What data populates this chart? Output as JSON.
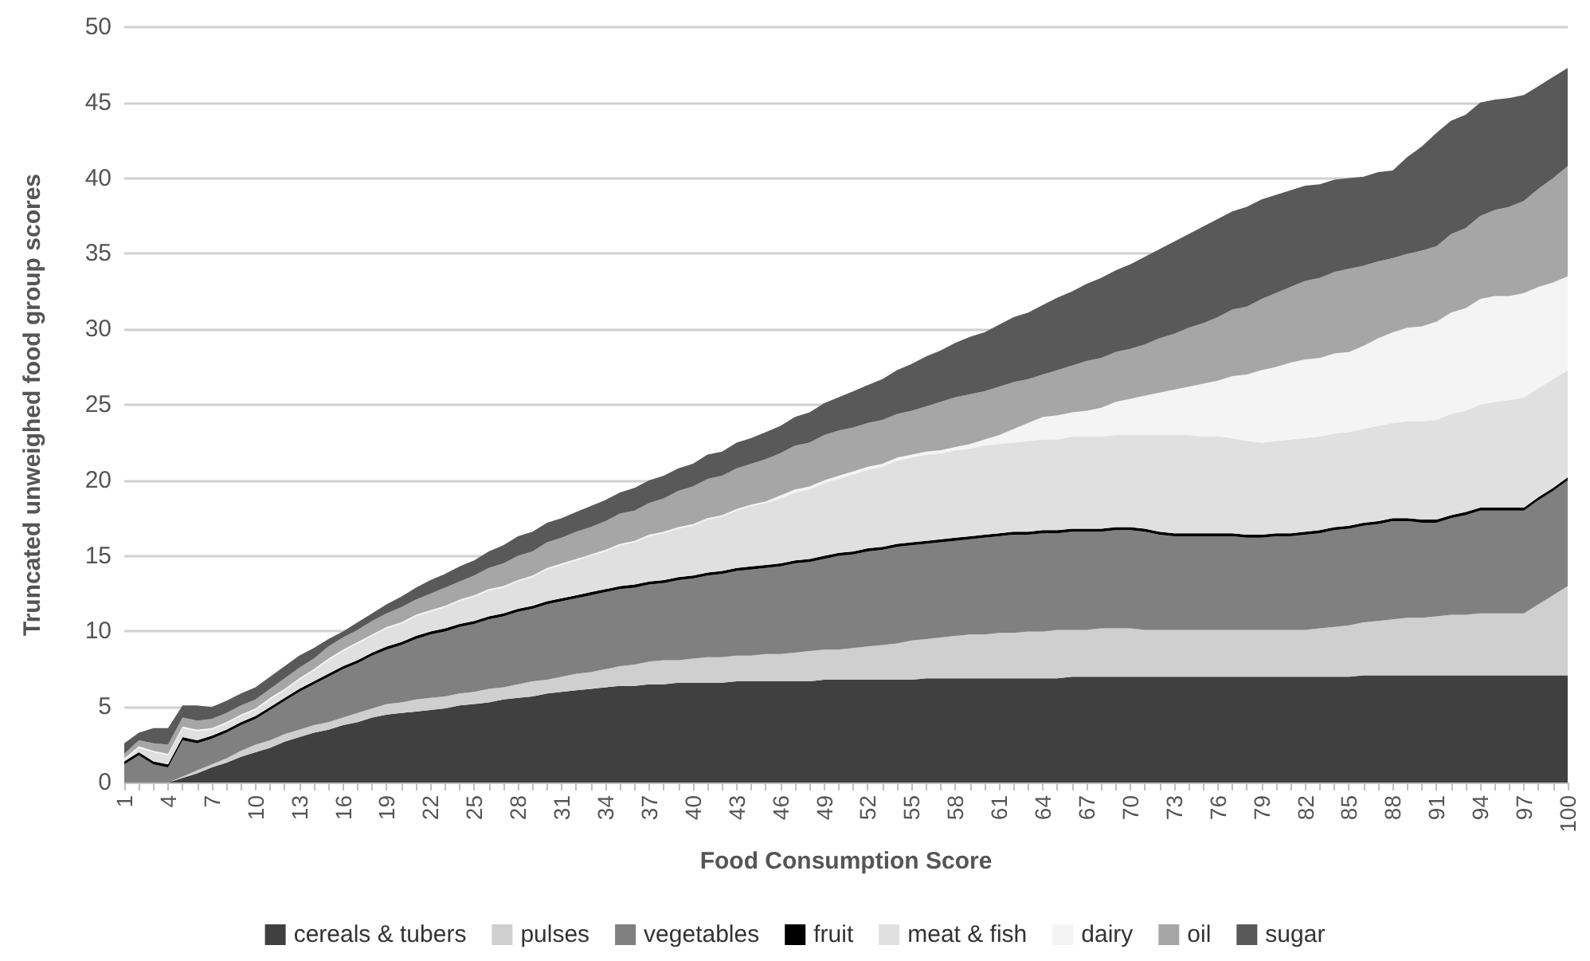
{
  "chart_data": {
    "type": "area",
    "stacked": true,
    "xlabel": "Food Consumption Score",
    "ylabel": "Truncated unweighed food group scores",
    "categories": [
      "1",
      null,
      null,
      "4",
      null,
      null,
      "7",
      null,
      null,
      "10",
      null,
      null,
      "13",
      null,
      null,
      "16",
      null,
      null,
      "19",
      null,
      null,
      "22",
      null,
      null,
      "25",
      null,
      null,
      "28",
      null,
      null,
      "31",
      null,
      null,
      "34",
      null,
      null,
      "37",
      null,
      null,
      "40",
      null,
      null,
      "43",
      null,
      null,
      "46",
      null,
      null,
      "49",
      null,
      null,
      "52",
      null,
      null,
      "55",
      null,
      null,
      "58",
      null,
      null,
      "61",
      null,
      null,
      "64",
      null,
      null,
      "67",
      null,
      null,
      "70",
      null,
      null,
      "73",
      null,
      null,
      "76",
      null,
      null,
      "79",
      null,
      null,
      "82",
      null,
      null,
      "85",
      null,
      null,
      "88",
      null,
      null,
      "91",
      null,
      null,
      "94",
      null,
      null,
      "97",
      null,
      null,
      "100"
    ],
    "series": [
      {
        "name": "cereals & tubers",
        "color": "#404040",
        "values": [
          0,
          0,
          0,
          0,
          0.3,
          0.6,
          1,
          1.3,
          1.7,
          2,
          2.3,
          2.7,
          3,
          3.3,
          3.5,
          3.8,
          4,
          4.3,
          4.5,
          4.6,
          4.7,
          4.8,
          4.9,
          5.1,
          5.2,
          5.3,
          5.5,
          5.6,
          5.7,
          5.9,
          6,
          6.1,
          6.2,
          6.3,
          6.4,
          6.4,
          6.5,
          6.5,
          6.6,
          6.6,
          6.6,
          6.6,
          6.7,
          6.7,
          6.7,
          6.7,
          6.7,
          6.7,
          6.8,
          6.8,
          6.8,
          6.8,
          6.8,
          6.8,
          6.8,
          6.9,
          6.9,
          6.9,
          6.9,
          6.9,
          6.9,
          6.9,
          6.9,
          6.9,
          6.9,
          7,
          7,
          7,
          7,
          7,
          7,
          7,
          7,
          7,
          7,
          7,
          7,
          7,
          7,
          7,
          7,
          7,
          7,
          7,
          7,
          7.1,
          7.1,
          7.1,
          7.1,
          7.1,
          7.1,
          7.1,
          7.1,
          7.1,
          7.1,
          7.1,
          7.1,
          7.1,
          7.1,
          7.1
        ]
      },
      {
        "name": "pulses",
        "color": "#cfcfcf",
        "values": [
          0,
          0,
          0,
          0,
          0.1,
          0.2,
          0.2,
          0.3,
          0.4,
          0.5,
          0.5,
          0.5,
          0.5,
          0.5,
          0.5,
          0.5,
          0.6,
          0.6,
          0.7,
          0.7,
          0.8,
          0.8,
          0.8,
          0.8,
          0.8,
          0.9,
          0.8,
          0.9,
          1,
          0.9,
          1,
          1.1,
          1.1,
          1.2,
          1.3,
          1.4,
          1.5,
          1.6,
          1.5,
          1.6,
          1.7,
          1.7,
          1.7,
          1.7,
          1.8,
          1.8,
          1.9,
          2,
          2,
          2,
          2.1,
          2.2,
          2.3,
          2.4,
          2.6,
          2.6,
          2.7,
          2.8,
          2.9,
          2.9,
          3,
          3,
          3.1,
          3.1,
          3.2,
          3.1,
          3.1,
          3.2,
          3.2,
          3.2,
          3.1,
          3.1,
          3.1,
          3.1,
          3.1,
          3.1,
          3.1,
          3.1,
          3.1,
          3.1,
          3.1,
          3.1,
          3.2,
          3.3,
          3.4,
          3.5,
          3.6,
          3.7,
          3.8,
          3.8,
          3.9,
          4,
          4,
          4.1,
          4.1,
          4.1,
          4.1,
          4.7,
          5.3,
          5.9
        ]
      },
      {
        "name": "vegetables",
        "color": "#808080",
        "values": [
          1.2,
          1.8,
          1.2,
          1,
          2.4,
          1.8,
          1.7,
          1.7,
          1.7,
          1.7,
          2,
          2.2,
          2.5,
          2.7,
          3,
          3.2,
          3.3,
          3.5,
          3.6,
          3.8,
          4,
          4.2,
          4.3,
          4.4,
          4.5,
          4.6,
          4.7,
          4.8,
          4.8,
          5,
          5,
          5,
          5.1,
          5.1,
          5.1,
          5.1,
          5.1,
          5.1,
          5.3,
          5.3,
          5.4,
          5.5,
          5.6,
          5.7,
          5.7,
          5.8,
          5.9,
          5.9,
          6,
          6.2,
          6.2,
          6.3,
          6.3,
          6.4,
          6.3,
          6.3,
          6.3,
          6.3,
          6.3,
          6.4,
          6.4,
          6.5,
          6.4,
          6.5,
          6.4,
          6.5,
          6.5,
          6.4,
          6.5,
          6.5,
          6.5,
          6.3,
          6.2,
          6.2,
          6.2,
          6.2,
          6.2,
          6.1,
          6.1,
          6.2,
          6.2,
          6.3,
          6.3,
          6.4,
          6.4,
          6.4,
          6.4,
          6.5,
          6.4,
          6.3,
          6.2,
          6.4,
          6.6,
          6.8,
          6.8,
          6.8,
          6.8,
          6.9,
          6.9,
          7
        ]
      },
      {
        "name": "fruit",
        "color": "#000000",
        "values": [
          0.2,
          0.2,
          0.2,
          0.2,
          0.2,
          0.2,
          0.2,
          0.2,
          0.2,
          0.2,
          0.2,
          0.2,
          0.2,
          0.2,
          0.2,
          0.2,
          0.2,
          0.2,
          0.2,
          0.2,
          0.2,
          0.2,
          0.2,
          0.2,
          0.2,
          0.2,
          0.2,
          0.2,
          0.2,
          0.2,
          0.2,
          0.2,
          0.2,
          0.2,
          0.2,
          0.2,
          0.2,
          0.2,
          0.2,
          0.2,
          0.2,
          0.2,
          0.2,
          0.2,
          0.2,
          0.2,
          0.2,
          0.2,
          0.2,
          0.2,
          0.2,
          0.2,
          0.2,
          0.2,
          0.2,
          0.2,
          0.2,
          0.2,
          0.2,
          0.2,
          0.2,
          0.2,
          0.2,
          0.2,
          0.2,
          0.2,
          0.2,
          0.2,
          0.2,
          0.2,
          0.2,
          0.2,
          0.2,
          0.2,
          0.2,
          0.2,
          0.2,
          0.2,
          0.2,
          0.2,
          0.2,
          0.2,
          0.2,
          0.2,
          0.2,
          0.2,
          0.2,
          0.2,
          0.2,
          0.2,
          0.2,
          0.2,
          0.2,
          0.2,
          0.2,
          0.2,
          0.2,
          0.2,
          0.2,
          0.2
        ]
      },
      {
        "name": "meat & fish",
        "color": "#e0e0e0",
        "values": [
          0.1,
          0.3,
          0.6,
          0.6,
          0.6,
          0.6,
          0.4,
          0.4,
          0.4,
          0.4,
          0.5,
          0.5,
          0.6,
          0.7,
          0.9,
          1,
          1.1,
          1.1,
          1.2,
          1.2,
          1.3,
          1.3,
          1.4,
          1.5,
          1.6,
          1.7,
          1.7,
          1.8,
          1.9,
          2.1,
          2.2,
          2.3,
          2.4,
          2.5,
          2.7,
          2.8,
          3,
          3.1,
          3.2,
          3.3,
          3.5,
          3.6,
          3.8,
          4,
          4.1,
          4.3,
          4.5,
          4.6,
          4.8,
          4.9,
          5.1,
          5.2,
          5.3,
          5.5,
          5.6,
          5.7,
          5.7,
          5.8,
          5.8,
          5.9,
          5.9,
          5.9,
          6,
          6,
          6,
          6.1,
          6.1,
          6.1,
          6.1,
          6.1,
          6.2,
          6.4,
          6.5,
          6.5,
          6.4,
          6.4,
          6.3,
          6.2,
          6.1,
          6.1,
          6.2,
          6.2,
          6.2,
          6.2,
          6.2,
          6.2,
          6.3,
          6.3,
          6.4,
          6.5,
          6.6,
          6.7,
          6.7,
          6.8,
          7,
          7.1,
          7.3,
          7.2,
          7.2,
          7.1
        ]
      },
      {
        "name": "dairy",
        "color": "#f4f4f4",
        "values": [
          0.1,
          0.1,
          0.1,
          0.1,
          0.1,
          0.1,
          0.1,
          0.1,
          0.1,
          0.1,
          0.1,
          0.1,
          0.1,
          0.1,
          0.1,
          0.1,
          0.1,
          0.1,
          0.1,
          0.1,
          0.1,
          0.1,
          0.1,
          0.1,
          0.1,
          0.1,
          0.1,
          0.1,
          0.1,
          0.1,
          0.1,
          0.1,
          0.1,
          0.1,
          0.1,
          0.1,
          0.1,
          0.1,
          0.1,
          0.1,
          0.1,
          0.1,
          0.1,
          0.1,
          0.1,
          0.2,
          0.2,
          0.2,
          0.2,
          0.2,
          0.2,
          0.2,
          0.2,
          0.2,
          0.2,
          0.2,
          0.2,
          0.2,
          0.3,
          0.4,
          0.6,
          0.9,
          1.2,
          1.5,
          1.6,
          1.6,
          1.7,
          1.9,
          2.2,
          2.4,
          2.6,
          2.8,
          3,
          3.2,
          3.5,
          3.7,
          4.1,
          4.4,
          4.8,
          4.9,
          5.1,
          5.2,
          5.2,
          5.3,
          5.3,
          5.5,
          5.8,
          6,
          6.2,
          6.3,
          6.5,
          6.7,
          6.8,
          7,
          7,
          6.9,
          6.9,
          6.7,
          6.4,
          6.2
        ]
      },
      {
        "name": "oil",
        "color": "#a6a6a6",
        "values": [
          0.3,
          0.4,
          0.5,
          0.6,
          0.6,
          0.6,
          0.6,
          0.6,
          0.6,
          0.6,
          0.6,
          0.7,
          0.7,
          0.7,
          0.8,
          0.8,
          0.8,
          0.9,
          0.9,
          1,
          1,
          1.1,
          1.2,
          1.2,
          1.3,
          1.4,
          1.5,
          1.6,
          1.6,
          1.7,
          1.7,
          1.8,
          1.8,
          1.9,
          2,
          2,
          2.1,
          2.2,
          2.4,
          2.5,
          2.6,
          2.6,
          2.7,
          2.7,
          2.8,
          2.8,
          2.9,
          2.9,
          3,
          3,
          2.9,
          2.9,
          2.9,
          2.9,
          2.9,
          3,
          3.2,
          3.3,
          3.3,
          3.2,
          3.2,
          3.1,
          2.9,
          2.8,
          3,
          3.1,
          3.3,
          3.3,
          3.3,
          3.3,
          3.4,
          3.6,
          3.7,
          3.9,
          4,
          4.2,
          4.4,
          4.5,
          4.7,
          4.9,
          5,
          5.2,
          5.3,
          5.4,
          5.5,
          5.3,
          5.1,
          4.9,
          4.9,
          5,
          5,
          5.2,
          5.3,
          5.5,
          5.7,
          5.9,
          6.1,
          6.5,
          6.9,
          7.3
        ]
      },
      {
        "name": "sugar",
        "color": "#595959",
        "values": [
          0.7,
          0.5,
          1,
          1.1,
          0.8,
          1,
          0.8,
          0.8,
          0.8,
          0.8,
          0.8,
          0.8,
          0.8,
          0.7,
          0.5,
          0.4,
          0.5,
          0.5,
          0.6,
          0.7,
          0.8,
          0.9,
          0.9,
          1,
          1,
          1.1,
          1.2,
          1.3,
          1.3,
          1.3,
          1.3,
          1.3,
          1.4,
          1.4,
          1.4,
          1.5,
          1.5,
          1.5,
          1.5,
          1.5,
          1.6,
          1.6,
          1.7,
          1.7,
          1.8,
          1.8,
          1.9,
          2,
          2.1,
          2.2,
          2.4,
          2.5,
          2.7,
          2.9,
          3.1,
          3.3,
          3.4,
          3.6,
          3.8,
          3.9,
          4.1,
          4.3,
          4.4,
          4.6,
          4.8,
          4.9,
          5.1,
          5.3,
          5.4,
          5.6,
          5.8,
          5.9,
          6.1,
          6.2,
          6.4,
          6.5,
          6.5,
          6.6,
          6.6,
          6.5,
          6.4,
          6.3,
          6.2,
          6.1,
          6,
          5.9,
          5.9,
          5.8,
          6.4,
          6.9,
          7.5,
          7.5,
          7.5,
          7.5,
          7.3,
          7.2,
          7,
          6.8,
          6.7,
          6.5
        ]
      }
    ],
    "ylim": [
      0,
      50
    ],
    "yticks": [
      0,
      5,
      10,
      15,
      20,
      25,
      30,
      35,
      40,
      45,
      50
    ],
    "grid": "y",
    "legend": "bottom"
  }
}
